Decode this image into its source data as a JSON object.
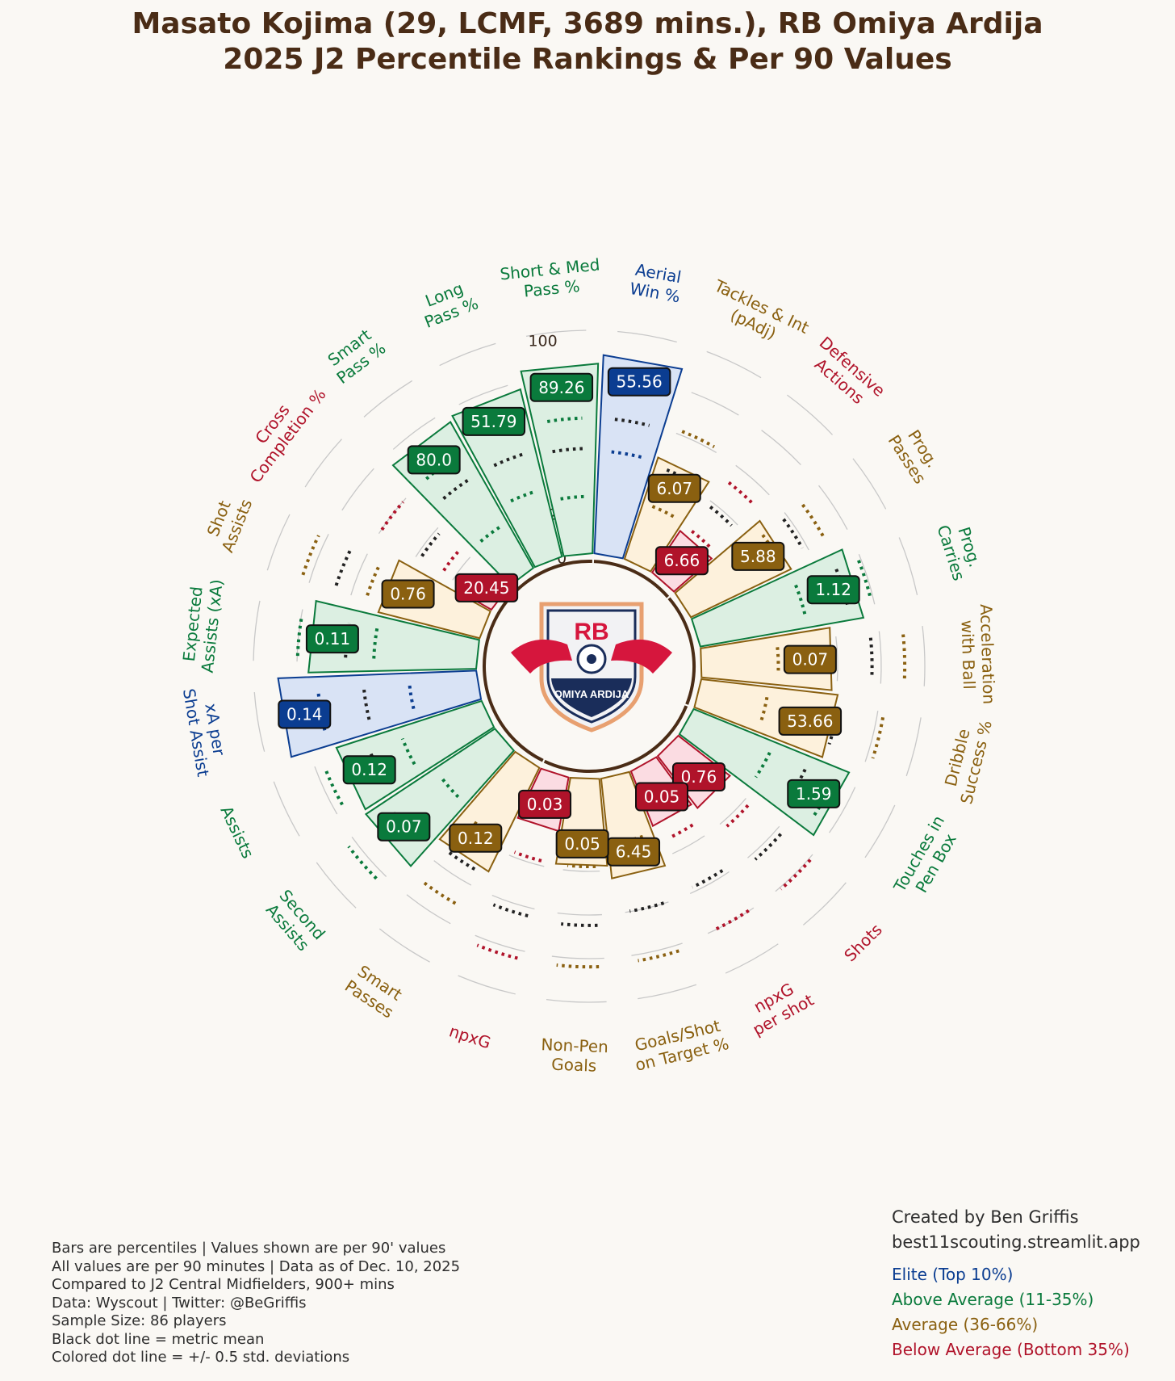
{
  "header": {
    "title_line1": "Masato Kojima (29, LCMF, 3689 mins.), RB Omiya Ardija",
    "title_line2": "2025 J2 Percentile Rankings & Per 90 Values"
  },
  "logo": {
    "text_top": "RB",
    "text_bottom": "OMIYA ARDIJA",
    "icon": "rb-omiya-ardija-crest-icon"
  },
  "colors": {
    "elite": "#0b3d91",
    "above": "#0a7a3c",
    "average": "#8a6010",
    "below": "#b0132a",
    "elite_fill": "#d9e3f5",
    "above_fill": "#dcefe2",
    "average_fill": "#fdf1dc",
    "below_fill": "#fbdce2",
    "background": "#faf8f4"
  },
  "chart_data": {
    "type": "bar",
    "subtype": "polar",
    "rlim": [
      0,
      100
    ],
    "r_ticks": [
      "0",
      "20",
      "40",
      "60",
      "80",
      "100"
    ],
    "legend_position": "bottom-right",
    "metrics": [
      {
        "label": "Aerial\nWin %",
        "value_label": "55.56",
        "percentile": 91,
        "mean_pct": 62,
        "sd_pct": [
          47,
          77
        ],
        "tier": "elite",
        "group": "defense"
      },
      {
        "label": "Tackles & Int\n(pAdj)",
        "value_label": "6.07",
        "percentile": 49,
        "mean_pct": 45,
        "sd_pct": [
          27,
          64
        ],
        "tier": "average",
        "group": "defense"
      },
      {
        "label": "Defensive\nActions",
        "value_label": "6.66",
        "percentile": 23,
        "mean_pct": 40,
        "sd_pct": [
          26,
          54
        ],
        "tier": "below",
        "group": "defense"
      },
      {
        "label": "Prog.\nPasses",
        "value_label": "5.88",
        "percentile": 51,
        "mean_pct": 60,
        "sd_pct": [
          48,
          71
        ],
        "tier": "average",
        "group": "possession"
      },
      {
        "label": "Prog.\nCarries",
        "value_label": "1.12",
        "percentile": 76,
        "mean_pct": 70,
        "sd_pct": [
          50,
          81
        ],
        "tier": "above",
        "group": "possession"
      },
      {
        "label": "Acceleration\nwith Ball",
        "value_label": "0.07",
        "percentile": 60,
        "mean_pct": 78,
        "sd_pct": [
          35,
          93
        ],
        "tier": "average",
        "group": "possession"
      },
      {
        "label": "Dribble\nSuccess %",
        "value_label": "53.66",
        "percentile": 63,
        "mean_pct": 64,
        "sd_pct": [
          31,
          85
        ],
        "tier": "average",
        "group": "possession"
      },
      {
        "label": "Touches in\nPen Box",
        "value_label": "1.59",
        "percentile": 77,
        "mean_pct": 58,
        "sd_pct": [
          40,
          72
        ],
        "tier": "above",
        "group": "shooting"
      },
      {
        "label": "Shots",
        "value_label": "0.76",
        "percentile": 30,
        "mean_pct": 65,
        "sd_pct": [
          45,
          83
        ],
        "tier": "below",
        "group": "shooting"
      },
      {
        "label": "npxG\nper shot",
        "value_label": "0.05",
        "percentile": 27,
        "mean_pct": 60,
        "sd_pct": [
          35,
          82
        ],
        "tier": "below",
        "group": "shooting"
      },
      {
        "label": "Goals/Shot\non Target %",
        "value_label": "6.45",
        "percentile": 46,
        "mean_pct": 62,
        "sd_pct": [
          30,
          85
        ],
        "tier": "average",
        "group": "shooting"
      },
      {
        "label": "Non-Pen\nGoals",
        "value_label": "0.05",
        "percentile": 40,
        "mean_pct": 67,
        "sd_pct": [
          40,
          86
        ],
        "tier": "average",
        "group": "shooting"
      },
      {
        "label": "npxG",
        "value_label": "0.03",
        "percentile": 25,
        "mean_pct": 66,
        "sd_pct": [
          40,
          86
        ],
        "tier": "below",
        "group": "shooting"
      },
      {
        "label": "Smart\nPasses",
        "value_label": "0.12",
        "percentile": 53,
        "mean_pct": 55,
        "sd_pct": [
          37,
          73
        ],
        "tier": "average",
        "group": "passing"
      },
      {
        "label": "Second\nAssists",
        "value_label": "0.07",
        "percentile": 71,
        "mean_pct": 60,
        "sd_pct": [
          33,
          86
        ],
        "tier": "above",
        "group": "passing"
      },
      {
        "label": "Assists",
        "value_label": "0.12",
        "percentile": 70,
        "mean_pct": 56,
        "sd_pct": [
          40,
          78
        ],
        "tier": "above",
        "group": "passing"
      },
      {
        "label": "xA per\nShot Assist",
        "value_label": "0.14",
        "percentile": 91,
        "mean_pct": 52,
        "sd_pct": [
          31,
          73
        ],
        "tier": "elite",
        "group": "passing"
      },
      {
        "label": "Expected\nAssists (xA)",
        "value_label": "0.11",
        "percentile": 77,
        "mean_pct": 60,
        "sd_pct": [
          47,
          82
        ],
        "tier": "above",
        "group": "passing"
      },
      {
        "label": "Shot\nAssists",
        "value_label": "0.76",
        "percentile": 48,
        "mean_pct": 70,
        "sd_pct": [
          55,
          86
        ],
        "tier": "average",
        "group": "passing"
      },
      {
        "label": "Cross\nCompletion %",
        "value_label": "20.45",
        "percentile": 7,
        "mean_pct": 40,
        "sd_pct": [
          28,
          62
        ],
        "tier": "below",
        "group": "passing"
      },
      {
        "label": "Smart\nPass %",
        "value_label": "80.0",
        "percentile": 77,
        "mean_pct": 50,
        "sd_pct": [
          24,
          62
        ],
        "tier": "above",
        "group": "passing"
      },
      {
        "label": "Long\nPass %",
        "value_label": "51.79",
        "percentile": 79,
        "mean_pct": 50,
        "sd_pct": [
          32,
          66
        ],
        "tier": "above",
        "group": "passing"
      },
      {
        "label": "Short & Med\nPass %",
        "value_label": "89.26",
        "percentile": 87,
        "mean_pct": 48,
        "sd_pct": [
          26,
          62
        ],
        "tier": "above",
        "group": "passing"
      }
    ]
  },
  "footnotes": [
    "Bars are percentiles | Values shown are per 90' values",
    "All values are per 90 minutes | Data as of Dec. 10, 2025",
    "Compared to J2 Central Midfielders, 900+ mins",
    "Data: Wyscout | Twitter: @BeGriffis",
    "Sample Size: 86 players",
    "Black dot line = metric mean",
    "Colored dot line = +/- 0.5 std. deviations"
  ],
  "credits": {
    "line1": "Created by Ben Griffis",
    "line2": "best11scouting.streamlit.app"
  },
  "legend": [
    {
      "tier": "elite",
      "label": "Elite (Top 10%)"
    },
    {
      "tier": "above",
      "label": "Above Average (11-35%)"
    },
    {
      "tier": "average",
      "label": "Average (36-66%)"
    },
    {
      "tier": "below",
      "label": "Below Average (Bottom 35%)"
    }
  ]
}
